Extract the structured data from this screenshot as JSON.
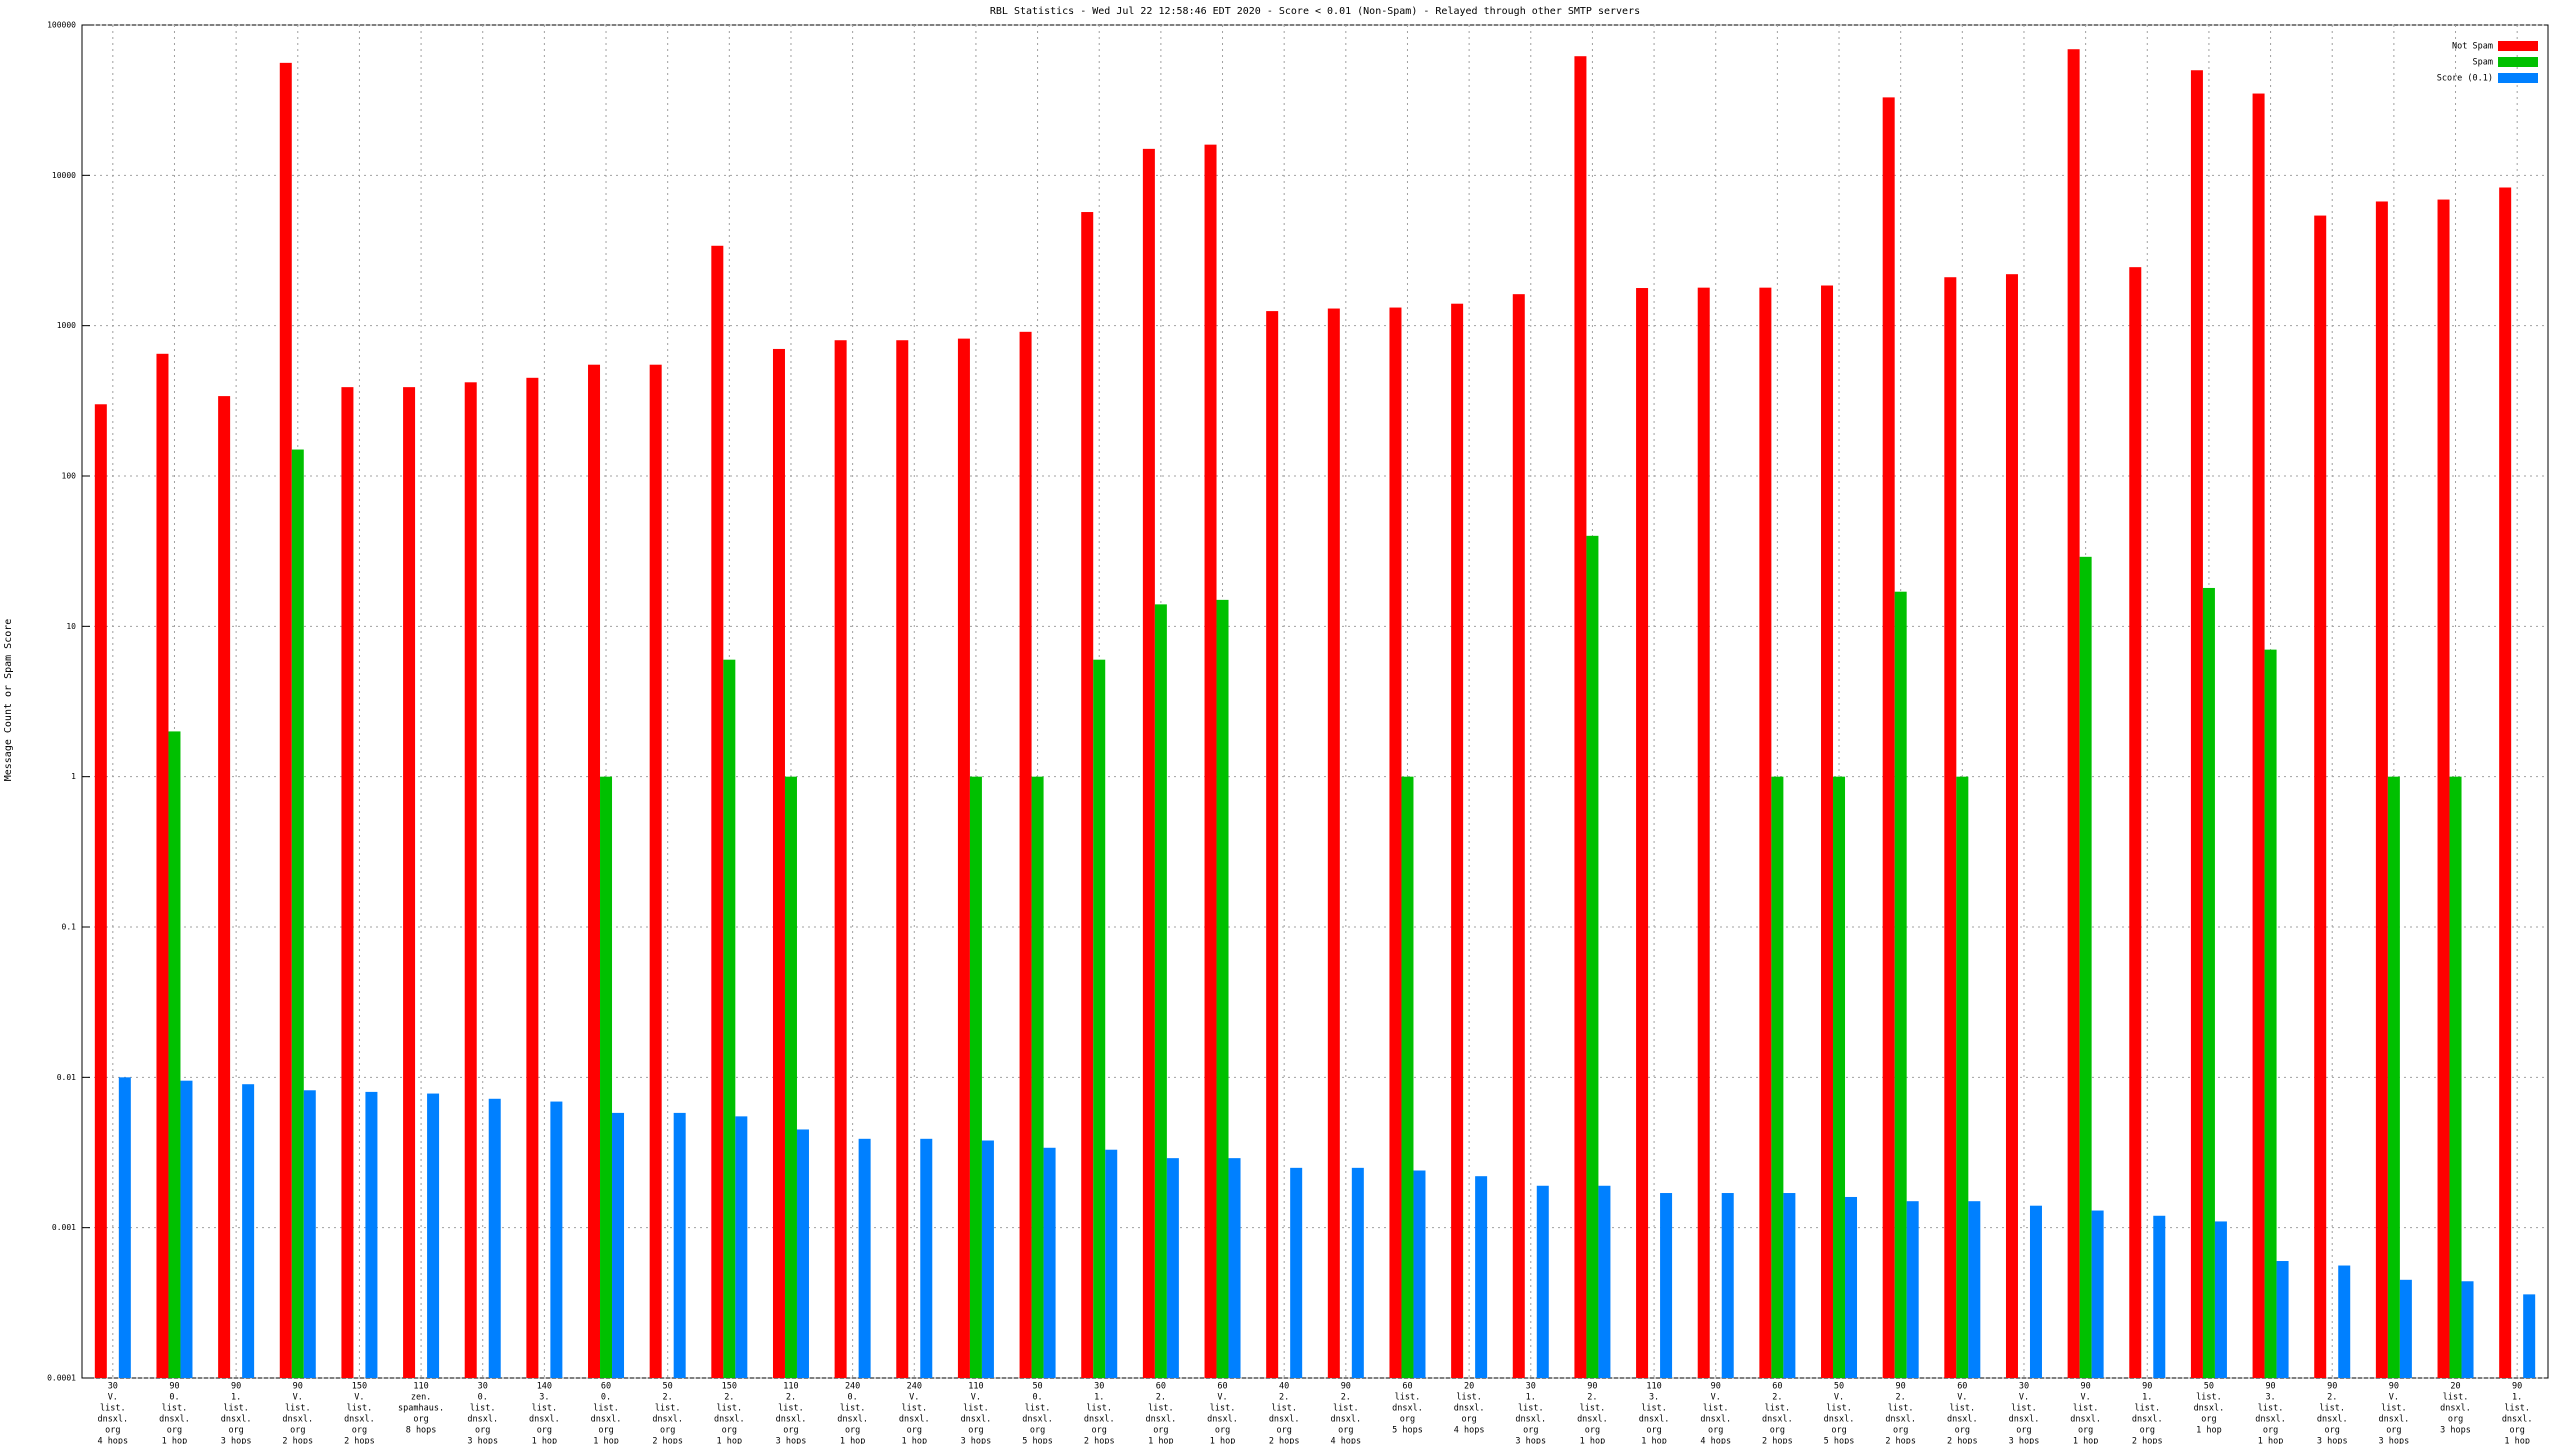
{
  "chart_data": {
    "type": "bar",
    "title": "RBL Statistics - Wed Jul 22 12:58:46 EDT 2020 - Score < 0.01 (Non-Spam) - Relayed through other SMTP servers",
    "y_label": "Message Count or Spam Score",
    "log_y": true,
    "grid": true,
    "legend_position": "top-right",
    "ylim": [
      0.0001,
      100000
    ],
    "yticks": [
      0.0001,
      0.001,
      0.01,
      0.1,
      1,
      10,
      100,
      1000,
      10000,
      100000
    ],
    "categories": [
      [
        "30",
        "V.",
        "list.",
        "dnsxl.",
        "org",
        "4 hops"
      ],
      [
        "90",
        "0.",
        "list.",
        "dnsxl.",
        "org",
        "1 hop"
      ],
      [
        "90",
        "1.",
        "list.",
        "dnsxl.",
        "org",
        "3 hops"
      ],
      [
        "90",
        "V.",
        "list.",
        "dnsxl.",
        "org",
        "2 hops"
      ],
      [
        "150",
        "V.",
        "list.",
        "dnsxl.",
        "org",
        "2 hops"
      ],
      [
        "110",
        "zen.",
        "spamhaus.",
        "org",
        "8 hops"
      ],
      [
        "30",
        "0.",
        "list.",
        "dnsxl.",
        "org",
        "3 hops"
      ],
      [
        "140",
        "3.",
        "list.",
        "dnsxl.",
        "org",
        "1 hop"
      ],
      [
        "60",
        "0.",
        "list.",
        "dnsxl.",
        "org",
        "1 hop"
      ],
      [
        "50",
        "2.",
        "list.",
        "dnsxl.",
        "org",
        "2 hops"
      ],
      [
        "150",
        "2.",
        "list.",
        "dnsxl.",
        "org",
        "1 hop"
      ],
      [
        "110",
        "2.",
        "list.",
        "dnsxl.",
        "org",
        "3 hops"
      ],
      [
        "240",
        "0.",
        "list.",
        "dnsxl.",
        "org",
        "1 hop"
      ],
      [
        "240",
        "V.",
        "list.",
        "dnsxl.",
        "org",
        "1 hop"
      ],
      [
        "110",
        "V.",
        "list.",
        "dnsxl.",
        "org",
        "3 hops"
      ],
      [
        "50",
        "0.",
        "list.",
        "dnsxl.",
        "org",
        "5 hops"
      ],
      [
        "30",
        "1.",
        "list.",
        "dnsxl.",
        "org",
        "2 hops"
      ],
      [
        "60",
        "2.",
        "list.",
        "dnsxl.",
        "org",
        "1 hop"
      ],
      [
        "60",
        "V.",
        "list.",
        "dnsxl.",
        "org",
        "1 hop"
      ],
      [
        "40",
        "2.",
        "list.",
        "dnsxl.",
        "org",
        "2 hops"
      ],
      [
        "90",
        "2.",
        "list.",
        "dnsxl.",
        "org",
        "4 hops"
      ],
      [
        "60",
        "list.",
        "dnsxl.",
        "org",
        "5 hops"
      ],
      [
        "20",
        "list.",
        "dnsxl.",
        "org",
        "4 hops"
      ],
      [
        "30",
        "1.",
        "list.",
        "dnsxl.",
        "org",
        "3 hops"
      ],
      [
        "90",
        "2.",
        "list.",
        "dnsxl.",
        "org",
        "1 hop"
      ],
      [
        "110",
        "3.",
        "list.",
        "dnsxl.",
        "org",
        "1 hop"
      ],
      [
        "90",
        "V.",
        "list.",
        "dnsxl.",
        "org",
        "4 hops"
      ],
      [
        "60",
        "2.",
        "list.",
        "dnsxl.",
        "org",
        "2 hops"
      ],
      [
        "50",
        "V.",
        "list.",
        "dnsxl.",
        "org",
        "5 hops"
      ],
      [
        "90",
        "2.",
        "list.",
        "dnsxl.",
        "org",
        "2 hops"
      ],
      [
        "60",
        "V.",
        "list.",
        "dnsxl.",
        "org",
        "2 hops"
      ],
      [
        "30",
        "V.",
        "list.",
        "dnsxl.",
        "org",
        "3 hops"
      ],
      [
        "90",
        "V.",
        "list.",
        "dnsxl.",
        "org",
        "1 hop"
      ],
      [
        "90",
        "1.",
        "list.",
        "dnsxl.",
        "org",
        "2 hops"
      ],
      [
        "50",
        "list.",
        "dnsxl.",
        "org",
        "1 hop"
      ],
      [
        "90",
        "3.",
        "list.",
        "dnsxl.",
        "org",
        "1 hop"
      ],
      [
        "90",
        "2.",
        "list.",
        "dnsxl.",
        "org",
        "3 hops"
      ],
      [
        "90",
        "V.",
        "list.",
        "dnsxl.",
        "org",
        "3 hops"
      ],
      [
        "20",
        "list.",
        "dnsxl.",
        "org",
        "3 hops"
      ],
      [
        "90",
        "1.",
        "list.",
        "dnsxl.",
        "org",
        "1 hop"
      ]
    ],
    "series": [
      {
        "name": "Not Spam",
        "color": "#ff0000",
        "values": [
          300,
          650,
          340,
          56000,
          390,
          390,
          420,
          450,
          550,
          550,
          3400,
          700,
          800,
          800,
          820,
          910,
          5700,
          15000,
          16000,
          1250,
          1300,
          1320,
          1400,
          1620,
          62000,
          1780,
          1790,
          1790,
          1850,
          33000,
          2100,
          2200,
          69000,
          2450,
          50000,
          35000,
          5400,
          6700,
          6900,
          8300
        ]
      },
      {
        "name": "Spam",
        "color": "#00c000",
        "values": [
          null,
          2,
          null,
          150,
          null,
          null,
          null,
          null,
          1,
          null,
          6,
          1,
          null,
          null,
          1,
          1,
          6,
          14,
          15,
          null,
          null,
          1,
          null,
          null,
          40,
          null,
          null,
          1,
          1,
          17,
          1,
          null,
          29,
          null,
          18,
          7,
          null,
          1,
          1,
          null
        ]
      },
      {
        "name": "Score (0.1)",
        "color": "#0080ff",
        "values": [
          0.01,
          0.0095,
          0.009,
          0.0082,
          0.008,
          0.0078,
          0.0072,
          0.0069,
          0.0058,
          0.0058,
          0.0055,
          0.0045,
          0.0039,
          0.0039,
          0.0038,
          0.0034,
          0.0033,
          0.0029,
          0.0029,
          0.0025,
          0.0025,
          0.0024,
          0.0022,
          0.0019,
          0.0019,
          0.0017,
          0.0017,
          0.0017,
          0.0016,
          0.0015,
          0.0015,
          0.0014,
          0.0013,
          0.0012,
          0.0011,
          0.0006,
          0.00056,
          0.00045,
          0.00044,
          0.00036
        ]
      }
    ]
  }
}
